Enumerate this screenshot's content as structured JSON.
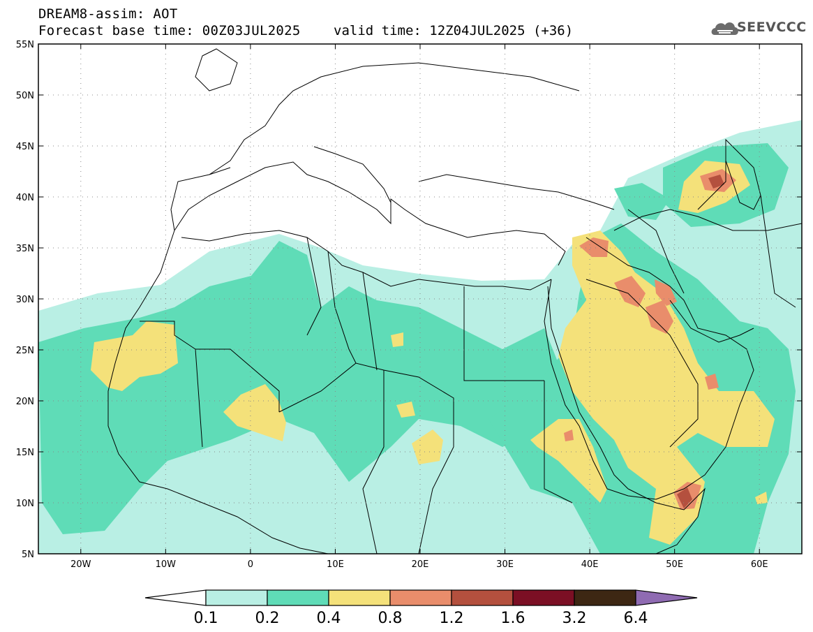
{
  "header": {
    "title_line1": "DREAM8-assim: AOT",
    "title_line2": "Forecast base time: 00Z03JUL2025",
    "valid_time": "valid time: 12Z04JUL2025 (+36)",
    "logo_text": "SEEVCCC"
  },
  "map": {
    "lon_range": [
      -25,
      65
    ],
    "lat_range": [
      5,
      55
    ],
    "lon_ticks": [
      {
        "value": -20,
        "label": "20W"
      },
      {
        "value": -10,
        "label": "10W"
      },
      {
        "value": 0,
        "label": "0"
      },
      {
        "value": 10,
        "label": "10E"
      },
      {
        "value": 20,
        "label": "20E"
      },
      {
        "value": 30,
        "label": "30E"
      },
      {
        "value": 40,
        "label": "40E"
      },
      {
        "value": 50,
        "label": "50E"
      },
      {
        "value": 60,
        "label": "60E"
      }
    ],
    "lat_ticks": [
      {
        "value": 55,
        "label": "55N"
      },
      {
        "value": 50,
        "label": "50N"
      },
      {
        "value": 45,
        "label": "45N"
      },
      {
        "value": 40,
        "label": "40N"
      },
      {
        "value": 35,
        "label": "35N"
      },
      {
        "value": 30,
        "label": "30N"
      },
      {
        "value": 25,
        "label": "25N"
      },
      {
        "value": 20,
        "label": "20N"
      },
      {
        "value": 15,
        "label": "15N"
      },
      {
        "value": 10,
        "label": "10N"
      },
      {
        "value": 5,
        "label": "5N"
      }
    ],
    "grid": true
  },
  "colorbar": {
    "levels": [
      "0.1",
      "0.2",
      "0.4",
      "0.8",
      "1.2",
      "1.6",
      "3.2",
      "6.4"
    ],
    "colors": {
      "below": "#ffffff",
      "bins": [
        "#b9efe4",
        "#5fdcb7",
        "#f4e17a",
        "#e98d6b",
        "#b4503e",
        "#7b0f24",
        "#3d2713"
      ],
      "above": "#8f6bb2"
    }
  }
}
